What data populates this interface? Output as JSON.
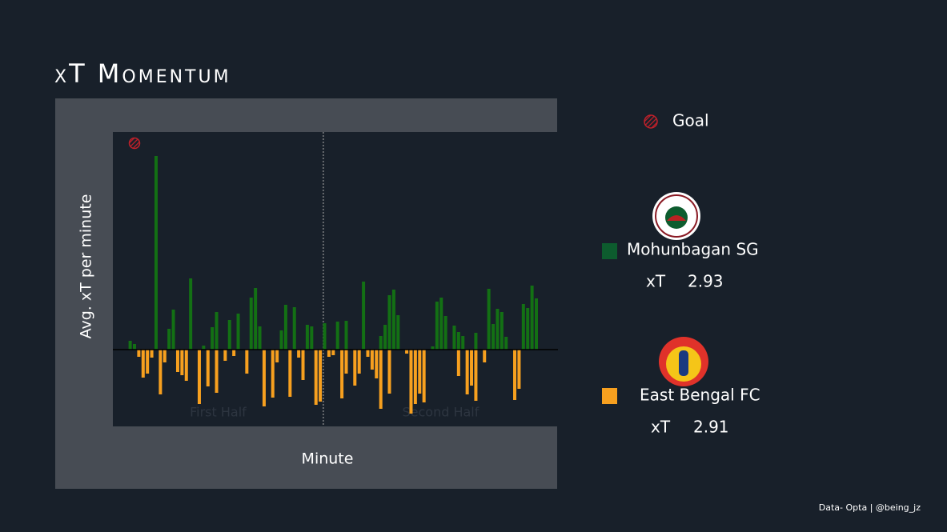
{
  "chart_data": {
    "type": "diverging-bar",
    "title": "xT Momentum",
    "x_label": "Minute",
    "y_label": "Avg. xT per minute",
    "xlim": [
      0,
      103
    ],
    "ylim": [
      -0.096,
      0.272
    ],
    "half_line": 48.7,
    "half_labels": [
      "First Half",
      "Second Half"
    ],
    "goal_label": "Goal",
    "goal_minutes": [
      5
    ],
    "goal_color": "#c0202a",
    "xt_label": "xT",
    "series": [
      {
        "name": "Mohunbagan SG",
        "color": "#0d5c2e",
        "bar_color": "#137014",
        "total_xt": 2.93,
        "x": [
          4,
          5,
          10,
          13,
          14,
          18,
          21,
          23,
          24,
          27,
          29,
          32,
          33,
          34,
          39,
          40,
          42,
          45,
          46,
          49,
          52,
          54,
          58,
          62,
          63,
          64,
          65,
          66,
          74,
          75,
          76,
          77,
          79,
          80,
          81,
          84,
          87,
          88,
          89,
          90,
          91,
          95,
          96,
          97,
          98
        ],
        "values": [
          0.011,
          0.007,
          0.242,
          0.026,
          0.05,
          0.089,
          0.005,
          0.028,
          0.047,
          0.037,
          0.045,
          0.065,
          0.077,
          0.029,
          0.024,
          0.056,
          0.053,
          0.031,
          0.029,
          0.033,
          0.035,
          0.036,
          0.085,
          0.017,
          0.031,
          0.068,
          0.075,
          0.043,
          0.004,
          0.06,
          0.065,
          0.042,
          0.03,
          0.022,
          0.017,
          0.021,
          0.076,
          0.032,
          0.051,
          0.047,
          0.016,
          0.057,
          0.052,
          0.08,
          0.064
        ]
      },
      {
        "name": "East Bengal FC",
        "color": "#f7a01f",
        "bar_color": "#f7a01f",
        "total_xt": 2.91,
        "x": [
          6,
          7,
          8,
          9,
          11,
          12,
          15,
          16,
          17,
          20,
          22,
          24,
          26,
          28,
          31,
          35,
          37,
          38,
          41,
          43,
          44,
          47,
          48,
          50,
          51,
          53,
          54,
          56,
          57,
          59,
          60,
          61,
          62,
          64,
          68,
          69,
          70,
          71,
          72,
          80,
          82,
          83,
          84,
          86,
          93,
          94
        ],
        "values": [
          -0.009,
          -0.035,
          -0.03,
          -0.01,
          -0.056,
          -0.016,
          -0.028,
          -0.032,
          -0.039,
          -0.068,
          -0.046,
          -0.054,
          -0.014,
          -0.008,
          -0.03,
          -0.071,
          -0.06,
          -0.016,
          -0.059,
          -0.01,
          -0.038,
          -0.069,
          -0.065,
          -0.009,
          -0.007,
          -0.061,
          -0.03,
          -0.045,
          -0.03,
          -0.009,
          -0.025,
          -0.036,
          -0.074,
          -0.055,
          -0.005,
          -0.08,
          -0.068,
          -0.055,
          -0.066,
          -0.033,
          -0.056,
          -0.045,
          -0.064,
          -0.016,
          -0.063,
          -0.049
        ]
      }
    ],
    "footer": "Data- Opta | @being_jz"
  }
}
